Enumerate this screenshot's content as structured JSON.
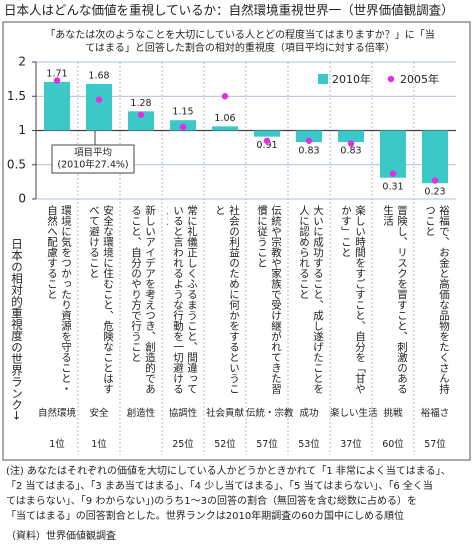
{
  "chart_data": {
    "type": "bar",
    "title": "日本人はどんな価値を重視しているか：自然環境重視世界一（世界価値観調査）",
    "subtitle": [
      "「あなたは次のようなことを大切にしている人とどの程度当てはまりますか？」に「当",
      "てはまる」と回答した割合の相対的重視度（項目平均に対する倍率）"
    ],
    "categories": [
      "環境に気をつかったり資源を守ること・自然へ配慮すること",
      "安全な環境に住むこと、危険なことはすべて避けること",
      "新しいアイデアを考えつき、創造的であること、自分のやり方で行うこと",
      "常に礼儀正しくふるまうこと、間違っていると言われるような行動を一切避けること",
      "社会の利益のために何かをするということ",
      "伝統や宗教や家族で受け継がれてきた習慣に従うこと",
      "大いに成功すること、成し遂げたことを人に認められること",
      "楽しい時間をすごすこと、自分を「甘やかす」こと",
      "冒険し、リスクを冒すこと、刺激のある生活",
      "裕福で、お金と高価な品物をたくさん持つこと"
    ],
    "short_labels": [
      "自然環境",
      "安全",
      "創造性",
      "協調性",
      "社会貢献",
      "伝統・宗教",
      "成功",
      "楽しい生活",
      "挑戦",
      "裕福さ"
    ],
    "ranks": [
      "1位",
      "1位",
      null,
      "25位",
      "52位",
      "57位",
      "53位",
      "37位",
      "60位",
      "57位"
    ],
    "rank_axis_label": "日本の相対的重視度の世界ランク→",
    "series": [
      {
        "name": "2010年",
        "color": "#3cc8c8",
        "mark": "bar",
        "values": [
          1.71,
          1.68,
          1.28,
          1.15,
          1.06,
          0.91,
          0.83,
          0.83,
          0.31,
          0.23
        ]
      },
      {
        "name": "2005年",
        "color": "#e030e0",
        "mark": "dot",
        "values": [
          1.73,
          1.45,
          1.23,
          1.05,
          1.5,
          0.85,
          0.85,
          0.81,
          0.37,
          0.27
        ]
      }
    ],
    "bar_base": 1,
    "ylim": [
      0,
      2
    ],
    "yticks": [
      0,
      0.5,
      1,
      1.5,
      2
    ],
    "legend": "upper right",
    "annotation": [
      "項目平均",
      "(2010年27.4%)"
    ],
    "notes": [
      "(注) あなたはそれぞれの価値を大切にしている人かどうかときかれて「1 非常によく当てはまる」、",
      "「2 当てはまる」、「3 まあ当てはまる」、「4 少し当てはまる」、「5 当てはまらない」、「6 全く当",
      "てはまらない」、「9 わからない」)のうち1～3の回答の割合（無回答を含む総数に占める）を",
      "「当てはまる」の回答割合とした。世界ランクは2010年期調査の60カ国中にしめる順位",
      "（資料）世界価値観調査"
    ]
  }
}
